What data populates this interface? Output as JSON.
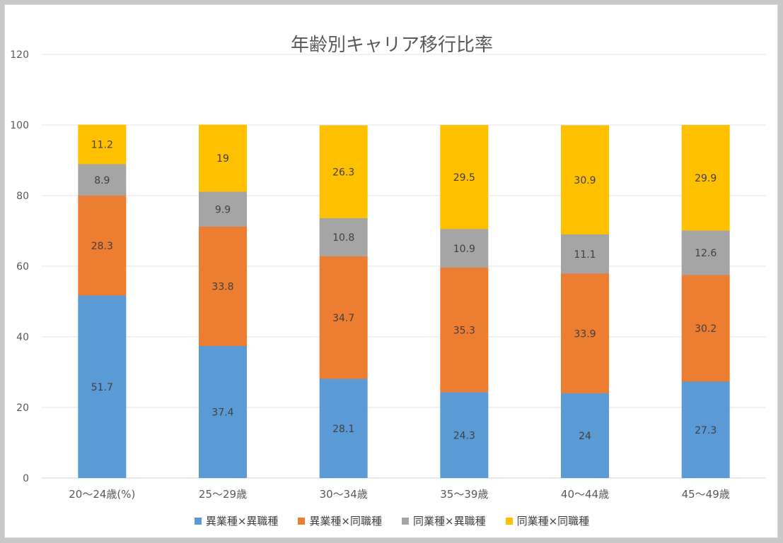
{
  "chart_data": {
    "type": "bar",
    "stacked": true,
    "title": "年齢別キャリア移行比率",
    "categories": [
      "20～24歳(%)",
      "25～29歳",
      "30～34歳",
      "35～39歳",
      "40～44歳",
      "45～49歳"
    ],
    "series": [
      {
        "name": "異業種×異職種",
        "color": "#5b9bd5",
        "values": [
          51.7,
          37.4,
          28.1,
          24.3,
          24,
          27.3
        ]
      },
      {
        "name": "異業種×同職種",
        "color": "#ed7d31",
        "values": [
          28.3,
          33.8,
          34.7,
          35.3,
          33.9,
          30.2
        ]
      },
      {
        "name": "同業種×異職種",
        "color": "#a5a5a5",
        "values": [
          8.9,
          9.9,
          10.8,
          10.9,
          11.1,
          12.6
        ]
      },
      {
        "name": "同業種×同職種",
        "color": "#ffc000",
        "values": [
          11.2,
          19,
          26.3,
          29.5,
          30.9,
          29.9
        ]
      }
    ],
    "ylim": [
      0,
      120
    ],
    "yticks": [
      0,
      20,
      40,
      60,
      80,
      100,
      120
    ],
    "grid": true,
    "legend": "bottom"
  }
}
